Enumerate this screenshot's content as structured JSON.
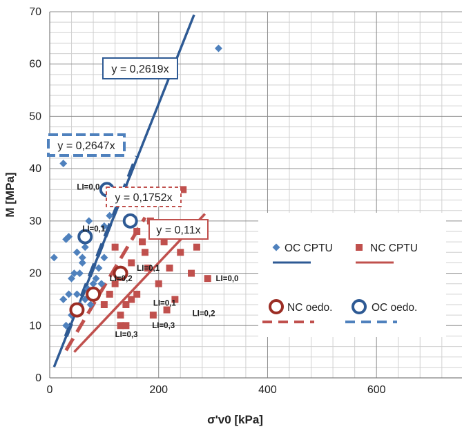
{
  "chart_data": {
    "type": "scatter",
    "xlabel": "σ'v0 [kPa]",
    "ylabel": "M [MPa]",
    "xlim": [
      0,
      880
    ],
    "ylim": [
      0,
      70
    ],
    "xticks": [
      0,
      200,
      400,
      600,
      800
    ],
    "yticks": [
      0,
      10,
      20,
      30,
      40,
      50,
      60,
      70
    ],
    "grid": true,
    "colors": {
      "oc": "#2e5a94",
      "oc_cptu": "#4f81bd",
      "nc": "#c0504d",
      "nc_dark": "#9b2d24",
      "oc_oedo_dash": "#4f81bd"
    },
    "series": [
      {
        "name": "OC CPTU",
        "marker": "diamond",
        "points": [
          [
            8,
            23
          ],
          [
            25,
            41
          ],
          [
            30,
            26.5
          ],
          [
            35,
            27
          ],
          [
            50,
            24
          ],
          [
            55,
            20
          ],
          [
            60,
            22
          ],
          [
            65,
            25
          ],
          [
            68,
            27
          ],
          [
            72,
            30
          ],
          [
            100,
            29
          ],
          [
            110,
            31
          ],
          [
            40,
            19
          ],
          [
            45,
            20
          ],
          [
            60,
            23
          ],
          [
            70,
            17
          ],
          [
            80,
            18
          ],
          [
            85,
            19
          ],
          [
            95,
            18
          ],
          [
            100,
            23
          ],
          [
            65,
            15
          ],
          [
            55,
            14
          ],
          [
            40,
            12
          ],
          [
            30,
            10
          ],
          [
            25,
            15
          ],
          [
            50,
            16
          ],
          [
            75,
            14
          ],
          [
            90,
            21
          ],
          [
            35,
            16
          ],
          [
            310,
            63
          ]
        ]
      },
      {
        "name": "NC CPTU",
        "marker": "square",
        "points": [
          [
            120,
            25
          ],
          [
            150,
            22
          ],
          [
            160,
            28
          ],
          [
            170,
            26
          ],
          [
            175,
            24
          ],
          [
            185,
            30
          ],
          [
            180,
            21
          ],
          [
            140,
            14
          ],
          [
            150,
            15
          ],
          [
            160,
            16
          ],
          [
            130,
            12
          ],
          [
            130,
            10
          ],
          [
            140,
            10
          ],
          [
            190,
            12
          ],
          [
            200,
            18
          ],
          [
            210,
            26
          ],
          [
            215,
            13
          ],
          [
            230,
            15
          ],
          [
            240,
            24
          ],
          [
            245,
            36
          ],
          [
            260,
            20
          ],
          [
            270,
            25
          ],
          [
            290,
            19
          ],
          [
            220,
            21
          ],
          [
            100,
            14
          ],
          [
            110,
            16
          ],
          [
            120,
            18
          ],
          [
            135,
            20
          ]
        ]
      },
      {
        "name": "NC oedo.",
        "marker": "ring",
        "points": [
          [
            50,
            13
          ],
          [
            80,
            16
          ],
          [
            130,
            20
          ]
        ]
      },
      {
        "name": "OC oedo.",
        "marker": "ring",
        "points": [
          [
            65,
            27
          ],
          [
            105,
            36
          ],
          [
            148,
            30
          ]
        ]
      }
    ],
    "trendlines": [
      {
        "name": "OC CPTU",
        "slope": 0.2619,
        "x": [
          8,
          265
        ],
        "style": "solid",
        "label": "y = 0,2619x"
      },
      {
        "name": "OC oedo.",
        "slope": 0.2647,
        "x": [
          30,
          160
        ],
        "style": "dashed",
        "label": "y = 0,2647x"
      },
      {
        "name": "NC CPTU",
        "slope": 0.11,
        "x": [
          45,
          285
        ],
        "style": "solid",
        "label": "y = 0,11x"
      },
      {
        "name": "NC oedo.",
        "slope": 0.1752,
        "x": [
          30,
          175
        ],
        "style": "dashed",
        "label": "y = 0,1752x"
      }
    ],
    "li_labels": [
      {
        "text": "LI=0,0",
        "x": 50,
        "y": 36
      },
      {
        "text": "LI=0,1",
        "x": 60,
        "y": 28
      },
      {
        "text": "LI=0,1",
        "x": 160,
        "y": 20.5
      },
      {
        "text": "LI=0,2",
        "x": 110,
        "y": 18.5
      },
      {
        "text": "LI=0,0",
        "x": 305,
        "y": 18.5
      },
      {
        "text": "LI=0,1",
        "x": 190,
        "y": 13.8
      },
      {
        "text": "LI=0,2",
        "x": 262,
        "y": 11.8
      },
      {
        "text": "LI=0,3",
        "x": 188,
        "y": 9.5
      },
      {
        "text": "LI=0,3",
        "x": 120,
        "y": 7.8
      }
    ],
    "legend": {
      "placement": "right",
      "entries": [
        {
          "label": "OC CPTU",
          "marker": "diamond",
          "color": "#4f81bd",
          "line": "solid",
          "line_color": "#2e5a94"
        },
        {
          "label": "NC CPTU",
          "marker": "square",
          "color": "#c0504d",
          "line": "solid",
          "line_color": "#c0504d"
        },
        {
          "label": "NC oedo.",
          "marker": "ring",
          "color": "#9b2d24",
          "line": "dashed",
          "line_color": "#c0504d"
        },
        {
          "label": "OC oedo.",
          "marker": "ring",
          "color": "#2e5a94",
          "line": "dashed",
          "line_color": "#4f81bd"
        }
      ]
    }
  }
}
